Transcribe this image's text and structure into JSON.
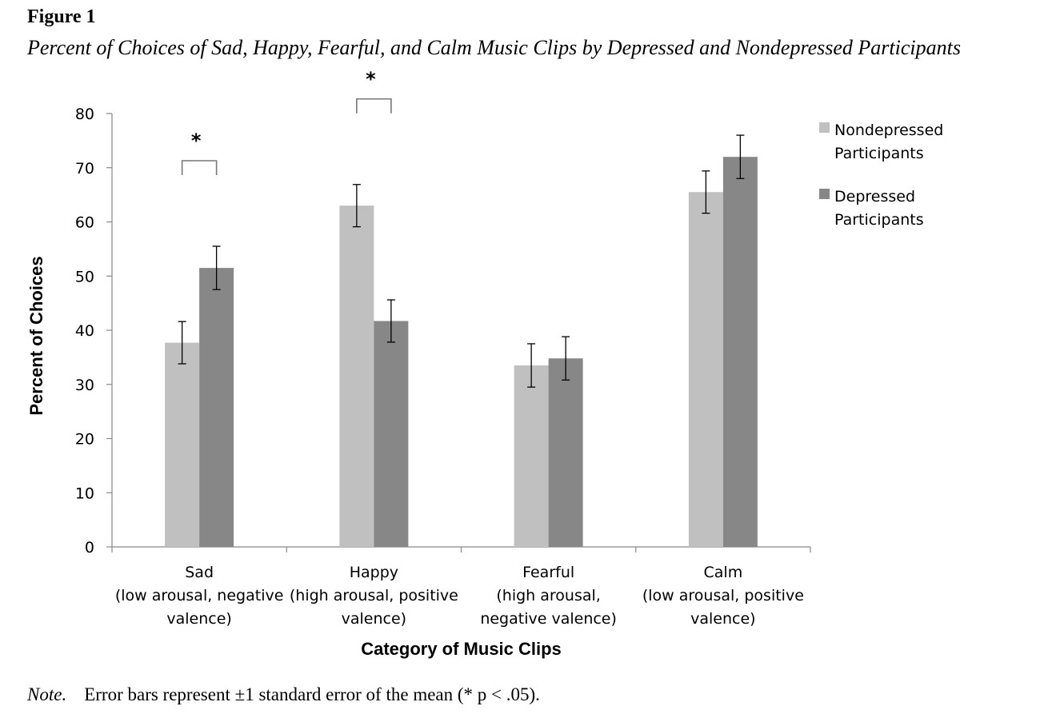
{
  "figure_label": "Figure 1",
  "figure_title": "Percent of Choices of Sad, Happy, Fearful, and Calm Music Clips by Depressed and Nondepressed Participants",
  "note": {
    "label": "Note.",
    "text": "Error bars represent ±1 standard error of the mean (* p < .05)."
  },
  "chart_data": {
    "type": "bar",
    "xlabel": "Category of Music Clips",
    "ylabel": "Percent of Choices",
    "ylim": [
      0,
      80
    ],
    "yticks": [
      0,
      10,
      20,
      30,
      40,
      50,
      60,
      70,
      80
    ],
    "grid": false,
    "legend_position": "top-right",
    "categories": [
      [
        "Sad",
        "(low arousal, negative",
        "valence)"
      ],
      [
        "Happy",
        "(high arousal, positive",
        "valence)"
      ],
      [
        "Fearful",
        "(high arousal,",
        "negative valence)"
      ],
      [
        "Calm",
        "(low arousal, positive",
        "valence)"
      ]
    ],
    "series": [
      {
        "name": "Nondepressed Participants",
        "legend_lines": [
          "Nondepressed",
          "Participants"
        ],
        "color": "#c0c0c0",
        "values": [
          37.7,
          63.0,
          33.5,
          65.5
        ],
        "errors": [
          3.9,
          3.9,
          4.0,
          3.9
        ]
      },
      {
        "name": "Depressed Participants",
        "legend_lines": [
          "Depressed",
          "Participants"
        ],
        "color": "#878787",
        "values": [
          51.5,
          41.7,
          34.8,
          72.0
        ],
        "errors": [
          4.0,
          3.9,
          4.0,
          4.0
        ]
      }
    ],
    "significance": [
      {
        "category_index": 0,
        "marker": "*"
      },
      {
        "category_index": 1,
        "marker": "*"
      }
    ]
  }
}
